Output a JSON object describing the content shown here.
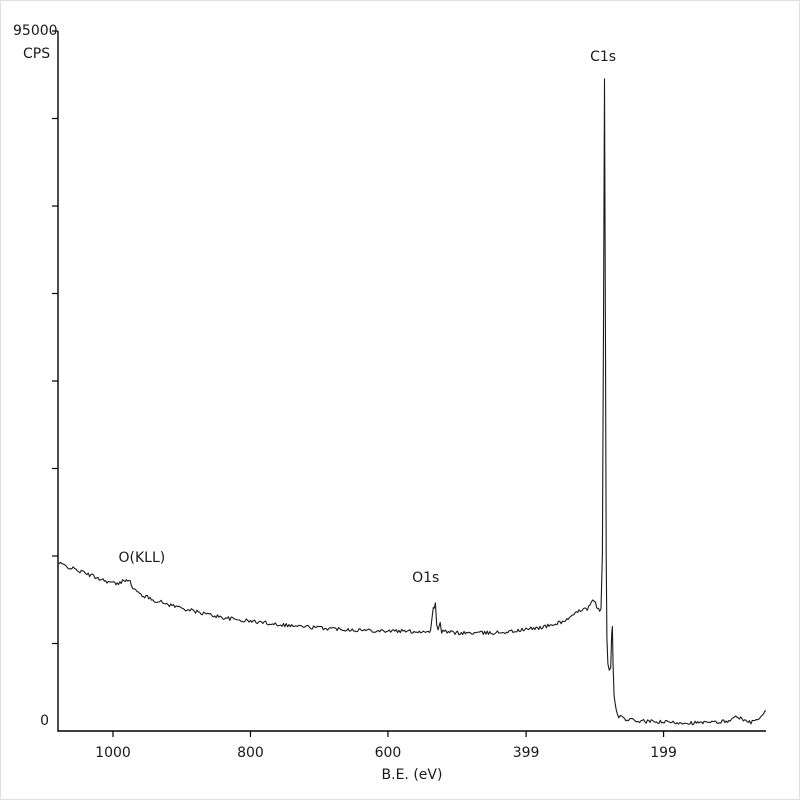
{
  "figure": {
    "y_axis": {
      "top_label": "95000",
      "unit_label": "CPS",
      "bottom_label": "0",
      "min": 0,
      "max": 95000,
      "minor_divisions": 8
    },
    "x_axis": {
      "title": "B.E. (eV)",
      "ticks": [
        {
          "label": "1000",
          "value": 1000
        },
        {
          "label": "800",
          "value": 800
        },
        {
          "label": "600",
          "value": 600
        },
        {
          "label": "399",
          "value": 399
        },
        {
          "label": "199",
          "value": 199
        }
      ]
    }
  },
  "chart_data": {
    "type": "line",
    "xlabel": "B.E. (eV)",
    "ylabel": "CPS",
    "x_range": [
      1080,
      50
    ],
    "y_range": [
      0,
      95000
    ],
    "x_reversed": true,
    "line_color": "#1a1a1a",
    "axis_color": "#000000",
    "background": "#ffffff",
    "noise": {
      "amplitude_cps": 260,
      "seed": 42,
      "step_ev": 2
    },
    "annotations": [
      {
        "text": "O(KLL)",
        "ev": 958,
        "cps": 23500
      },
      {
        "text": "O1s",
        "ev": 545,
        "cps": 20800
      },
      {
        "text": "C1s",
        "ev": 287,
        "cps": 91500
      }
    ],
    "points": [
      [
        1080,
        22800
      ],
      [
        1060,
        22100
      ],
      [
        1040,
        21400
      ],
      [
        1020,
        20700
      ],
      [
        1005,
        20200
      ],
      [
        992,
        19900
      ],
      [
        984,
        20500
      ],
      [
        977,
        20600
      ],
      [
        971,
        19400
      ],
      [
        963,
        18700
      ],
      [
        952,
        18200
      ],
      [
        938,
        17700
      ],
      [
        920,
        17200
      ],
      [
        900,
        16700
      ],
      [
        880,
        16200
      ],
      [
        860,
        15800
      ],
      [
        840,
        15400
      ],
      [
        820,
        15100
      ],
      [
        800,
        14900
      ],
      [
        780,
        14700
      ],
      [
        760,
        14500
      ],
      [
        740,
        14300
      ],
      [
        720,
        14150
      ],
      [
        700,
        14000
      ],
      [
        680,
        13900
      ],
      [
        660,
        13800
      ],
      [
        640,
        13700
      ],
      [
        620,
        13650
      ],
      [
        600,
        13600
      ],
      [
        580,
        13550
      ],
      [
        560,
        13500
      ],
      [
        545,
        13500
      ],
      [
        538,
        13600
      ],
      [
        534,
        16600
      ],
      [
        531,
        17200
      ],
      [
        529,
        14200
      ],
      [
        527,
        13600
      ],
      [
        524,
        14800
      ],
      [
        522,
        13500
      ],
      [
        510,
        13400
      ],
      [
        495,
        13300
      ],
      [
        480,
        13300
      ],
      [
        465,
        13300
      ],
      [
        450,
        13300
      ],
      [
        435,
        13400
      ],
      [
        420,
        13500
      ],
      [
        405,
        13700
      ],
      [
        390,
        13900
      ],
      [
        375,
        14100
      ],
      [
        360,
        14400
      ],
      [
        348,
        14800
      ],
      [
        338,
        15200
      ],
      [
        328,
        15800
      ],
      [
        320,
        16400
      ],
      [
        314,
        16800
      ],
      [
        310,
        16600
      ],
      [
        306,
        17100
      ],
      [
        302,
        17600
      ],
      [
        298,
        17300
      ],
      [
        295,
        16700
      ],
      [
        292,
        16100
      ],
      [
        290,
        16600
      ],
      [
        288,
        24000
      ],
      [
        286.5,
        52000
      ],
      [
        285,
        88500
      ],
      [
        283.5,
        52000
      ],
      [
        282.5,
        24000
      ],
      [
        281.5,
        12500
      ],
      [
        280,
        9000
      ],
      [
        278,
        8300
      ],
      [
        276,
        8500
      ],
      [
        274.5,
        13000
      ],
      [
        273.5,
        14000
      ],
      [
        272.5,
        9000
      ],
      [
        271,
        4800
      ],
      [
        268,
        2700
      ],
      [
        264,
        2000
      ],
      [
        258,
        1700
      ],
      [
        250,
        1500
      ],
      [
        240,
        1400
      ],
      [
        228,
        1300
      ],
      [
        215,
        1250
      ],
      [
        200,
        1200
      ],
      [
        185,
        1150
      ],
      [
        170,
        1150
      ],
      [
        155,
        1100
      ],
      [
        140,
        1100
      ],
      [
        125,
        1150
      ],
      [
        110,
        1300
      ],
      [
        98,
        1600
      ],
      [
        92,
        2100
      ],
      [
        87,
        1700
      ],
      [
        81,
        1300
      ],
      [
        74,
        1200
      ],
      [
        66,
        1300
      ],
      [
        59,
        1700
      ],
      [
        53,
        2300
      ],
      [
        50,
        2700
      ]
    ]
  }
}
